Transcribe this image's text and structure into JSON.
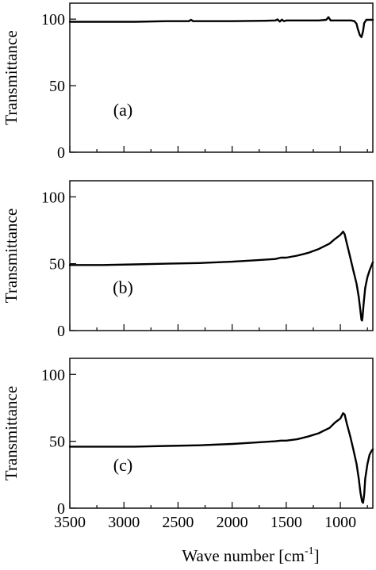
{
  "figure": {
    "x_title_main": "Wave number [cm",
    "x_title_sup": "-1",
    "x_title_close": "]"
  },
  "chart_data": [
    {
      "type": "line",
      "panel_label": "(a)",
      "ylabel": "Transmittance",
      "xlim": [
        3500,
        700
      ],
      "ylim": [
        0,
        112
      ],
      "yticks": [
        0,
        50,
        100
      ],
      "xticks": [
        3500,
        3000,
        2500,
        2000,
        1500,
        1000
      ],
      "series": [
        {
          "x": [
            3500,
            3200,
            2900,
            2600,
            2400,
            2380,
            2360,
            2300,
            2000,
            1700,
            1600,
            1580,
            1560,
            1540,
            1520,
            1500,
            1400,
            1200,
            1130,
            1110,
            1090,
            1050,
            1000,
            950,
            900,
            870,
            850,
            840,
            820,
            805,
            790,
            780,
            760,
            740,
            720,
            700
          ],
          "y": [
            98,
            98,
            98,
            98.5,
            98.5,
            99.5,
            98.5,
            98.5,
            98.5,
            98.8,
            99,
            99.8,
            98.2,
            99.6,
            98.4,
            99,
            99,
            99,
            99.5,
            101.5,
            99,
            99,
            99,
            99,
            99,
            98.5,
            96.5,
            93,
            88,
            86.5,
            91,
            97,
            99.5,
            99.5,
            99.5,
            99.5
          ]
        }
      ]
    },
    {
      "type": "line",
      "panel_label": "(b)",
      "ylabel": "Transmittance",
      "xlim": [
        3500,
        700
      ],
      "ylim": [
        0,
        112
      ],
      "yticks": [
        0,
        50,
        100
      ],
      "xticks": [
        3500,
        3000,
        2500,
        2000,
        1500,
        1000
      ],
      "series": [
        {
          "x": [
            3500,
            3200,
            2900,
            2600,
            2300,
            2000,
            1800,
            1600,
            1550,
            1500,
            1400,
            1300,
            1200,
            1100,
            1050,
            1000,
            975,
            960,
            940,
            910,
            880,
            850,
            830,
            815,
            805,
            800,
            795,
            785,
            770,
            750,
            730,
            710,
            700
          ],
          "y": [
            49,
            49,
            49.5,
            50,
            50.5,
            51.5,
            52.5,
            53.5,
            54.5,
            54.5,
            56,
            58,
            61,
            65,
            68.5,
            71.5,
            74,
            72,
            65,
            55,
            45,
            35,
            25,
            15,
            8,
            7.5,
            10,
            20,
            32,
            40,
            45,
            49,
            51
          ]
        }
      ]
    },
    {
      "type": "line",
      "panel_label": "(c)",
      "ylabel": "Transmittance",
      "xlim": [
        3500,
        700
      ],
      "ylim": [
        0,
        112
      ],
      "yticks": [
        0,
        50,
        100
      ],
      "xticks": [
        3500,
        3000,
        2500,
        2000,
        1500,
        1000
      ],
      "series": [
        {
          "x": [
            3500,
            3200,
            2900,
            2600,
            2300,
            2000,
            1800,
            1600,
            1550,
            1500,
            1400,
            1300,
            1200,
            1150,
            1100,
            1050,
            1000,
            975,
            960,
            940,
            910,
            880,
            850,
            830,
            815,
            800,
            790,
            780,
            770,
            750,
            730,
            710,
            700
          ],
          "y": [
            46,
            46,
            46,
            46.5,
            47,
            48,
            49,
            50,
            50.5,
            50.5,
            51.5,
            53.5,
            56,
            58,
            60,
            64,
            67,
            71,
            70,
            63,
            54,
            44,
            33,
            22,
            12,
            5,
            4,
            10,
            22,
            33,
            40,
            43,
            44
          ]
        }
      ]
    }
  ]
}
